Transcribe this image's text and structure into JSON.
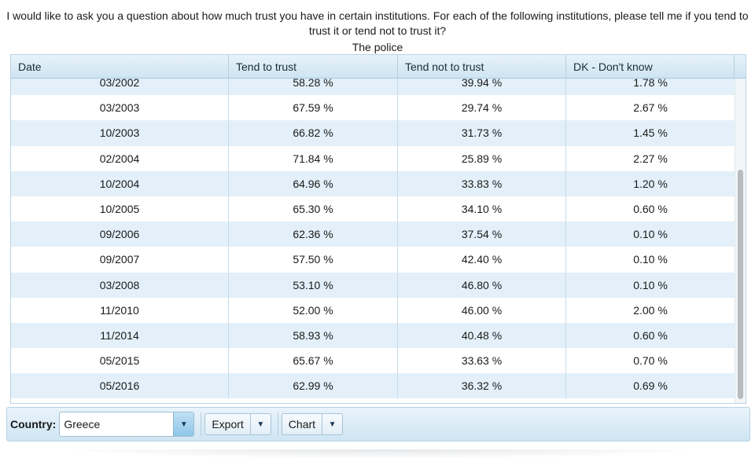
{
  "question": "I would like to ask you a question about how much trust you have in certain institutions. For each of the following institutions, please tell me if you tend to trust it or tend not to trust it?",
  "subtitle": "The police",
  "table": {
    "headers": [
      "Date",
      "Tend to trust",
      "Tend not to trust",
      "DK - Don't know"
    ],
    "rows": [
      [
        "03/2002",
        "58.28 %",
        "39.94 %",
        "1.78 %"
      ],
      [
        "03/2003",
        "67.59 %",
        "29.74 %",
        "2.67 %"
      ],
      [
        "10/2003",
        "66.82 %",
        "31.73 %",
        "1.45 %"
      ],
      [
        "02/2004",
        "71.84 %",
        "25.89 %",
        "2.27 %"
      ],
      [
        "10/2004",
        "64.96 %",
        "33.83 %",
        "1.20 %"
      ],
      [
        "10/2005",
        "65.30 %",
        "34.10 %",
        "0.60 %"
      ],
      [
        "09/2006",
        "62.36 %",
        "37.54 %",
        "0.10 %"
      ],
      [
        "09/2007",
        "57.50 %",
        "42.40 %",
        "0.10 %"
      ],
      [
        "03/2008",
        "53.10 %",
        "46.80 %",
        "0.10 %"
      ],
      [
        "11/2010",
        "52.00 %",
        "46.00 %",
        "2.00 %"
      ],
      [
        "11/2014",
        "58.93 %",
        "40.48 %",
        "0.60 %"
      ],
      [
        "05/2015",
        "65.67 %",
        "33.63 %",
        "0.70 %"
      ],
      [
        "05/2016",
        "62.99 %",
        "36.32 %",
        "0.69 %"
      ]
    ]
  },
  "toolbar": {
    "country_label": "Country:",
    "country_value": "Greece",
    "export_label": "Export",
    "chart_label": "Chart",
    "dropdown_arrow": "▼"
  },
  "colors": {
    "header_bg": "#d6e8f4",
    "row_alt": "#e3f0f9",
    "border": "#b9d4e3"
  }
}
